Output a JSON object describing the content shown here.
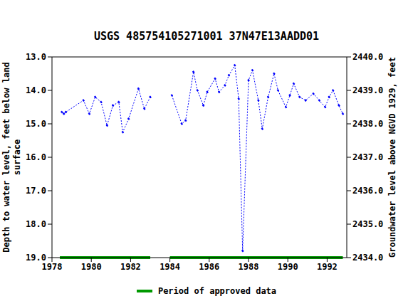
{
  "chart_data": {
    "type": "line",
    "title": "USGS 485754105271001 37N47E13AADD01",
    "ylabel": "Depth to water level, feet below land surface",
    "y2label": "Groundwater level above NGVD 1929, feet",
    "x": [
      1978.5,
      1978.6,
      1978.7,
      1979.6,
      1979.9,
      1980.2,
      1980.5,
      1980.8,
      1981.1,
      1981.4,
      1981.6,
      1981.9,
      1982.4,
      1982.7,
      1983.0,
      1983.5,
      1984.1,
      1984.6,
      1984.8,
      1985.2,
      1985.4,
      1985.7,
      1985.9,
      1986.3,
      1986.5,
      1986.8,
      1987.0,
      1987.3,
      1987.5,
      1987.7,
      1988.0,
      1988.2,
      1988.5,
      1988.7,
      1989.0,
      1989.3,
      1989.5,
      1989.9,
      1990.1,
      1990.3,
      1990.6,
      1990.9,
      1991.3,
      1991.6,
      1991.9,
      1992.1,
      1992.3,
      1992.6,
      1992.8
    ],
    "series": [
      {
        "color": "#0000ff",
        "marker": "point",
        "line_style": "dotted",
        "values": [
          14.65,
          14.7,
          14.65,
          14.3,
          14.7,
          14.2,
          14.35,
          15.05,
          14.45,
          14.35,
          15.25,
          14.85,
          13.95,
          14.55,
          14.2,
          null,
          14.15,
          15.0,
          14.9,
          13.45,
          14.0,
          14.45,
          14.05,
          13.65,
          14.05,
          13.85,
          13.55,
          13.25,
          14.25,
          18.8,
          13.7,
          13.4,
          14.3,
          15.15,
          14.2,
          13.5,
          14.0,
          14.5,
          14.15,
          13.8,
          14.2,
          14.3,
          14.1,
          14.3,
          14.5,
          14.2,
          14.0,
          14.45,
          14.7
        ]
      }
    ],
    "approved_periods": {
      "name": "Period of approved data",
      "color": "#009900",
      "ranges": [
        [
          1978.4,
          1983.0
        ],
        [
          1984.0,
          1992.8
        ]
      ]
    },
    "xlim": [
      1978,
      1993
    ],
    "xticks": [
      1978,
      1980,
      1982,
      1984,
      1986,
      1988,
      1990,
      1992
    ],
    "ylim": [
      19,
      13
    ],
    "yticks": [
      {
        "value": 13,
        "label": "13.0"
      },
      {
        "value": 14,
        "label": "14.0"
      },
      {
        "value": 15,
        "label": "15.0"
      },
      {
        "value": 16,
        "label": "16.0"
      },
      {
        "value": 17,
        "label": "17.0"
      },
      {
        "value": 18,
        "label": "18.0"
      },
      {
        "value": 19,
        "label": "19.0"
      }
    ],
    "y2lim": [
      2434,
      2440
    ],
    "y2ticks": [
      {
        "value": 2434,
        "label": "2434.0"
      },
      {
        "value": 2435,
        "label": "2435.0"
      },
      {
        "value": 2436,
        "label": "2436.0"
      },
      {
        "value": 2437,
        "label": "2437.0"
      },
      {
        "value": 2438,
        "label": "2438.0"
      },
      {
        "value": 2439,
        "label": "2439.0"
      },
      {
        "value": 2440,
        "label": "2440.0"
      }
    ],
    "grid": false
  }
}
